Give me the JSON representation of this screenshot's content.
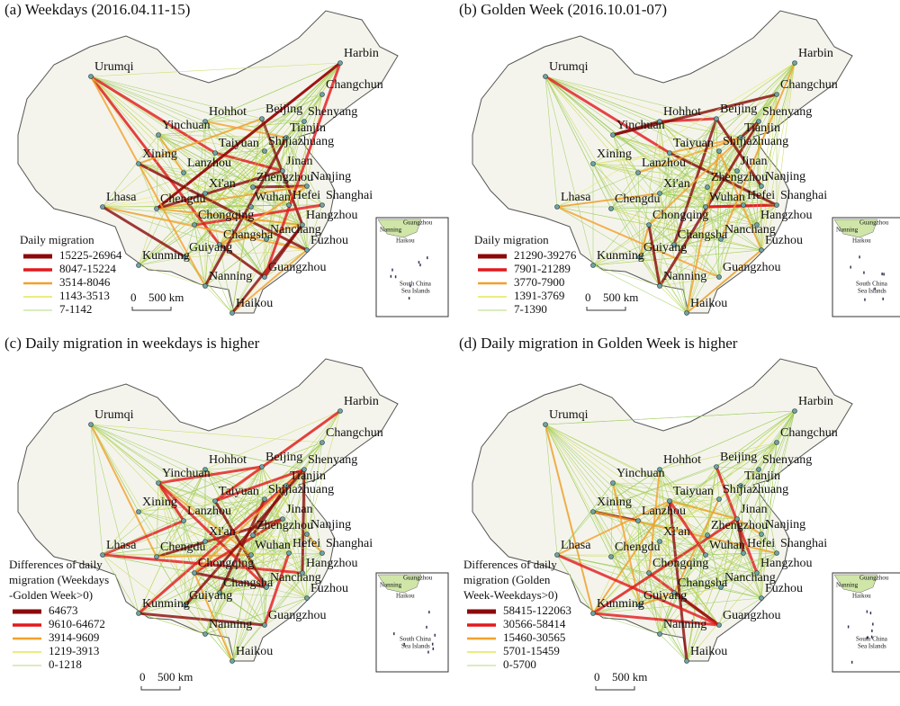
{
  "panels": [
    {
      "title": "(a) Weekdays (2016.04.11-15)",
      "cities": [
        "Urumqi",
        "Harbin",
        "Changchun",
        "Hohhot",
        "Beijing",
        "Shenyang",
        "Yinchuan",
        "Tianjin",
        "Taiyuan",
        "Shijiazhuang",
        "Xining",
        "Lanzhou",
        "Jinan",
        "Nanjing",
        "Zhengzhou",
        "Xi'an",
        "Lhasa",
        "Chengdu",
        "Wuhan",
        "Hefei",
        "Shanghai",
        "Chongqing",
        "Hangzhou",
        "Changsha",
        "Nanchang",
        "Fuzhou",
        "Guiyang",
        "Kunming",
        "Guangzhou",
        "Nanning",
        "Haikou"
      ],
      "legend": {
        "title": [
          "Daily migration"
        ],
        "items": [
          {
            "label": "15225-26964",
            "color": "#8b0a0a"
          },
          {
            "label": "8047-15224",
            "color": "#e3191c"
          },
          {
            "label": "3514-8046",
            "color": "#f5a02a"
          },
          {
            "label": "1143-3513",
            "color": "#e6e65a"
          },
          {
            "label": "7-1142",
            "color": "#9ccc5a"
          }
        ]
      },
      "scale": [
        "0",
        "500 km"
      ],
      "inset": [
        "Guangzhou",
        "Nanning",
        "Haikou",
        "South China",
        "Sea Islands"
      ]
    },
    {
      "title": "(b) Golden Week (2016.10.01-07)",
      "cities": [
        "Urumqi",
        "Harbin",
        "Changchun",
        "Hohhot",
        "Beijing",
        "Shenyang",
        "Yinchuan",
        "Tianjin",
        "Taiyuan",
        "Shijiazhuang",
        "Xining",
        "Lanzhou",
        "Jinan",
        "Nanjing",
        "Zhengzhou",
        "Xi'an",
        "Lhasa",
        "Chengdu",
        "Wuhan",
        "Hefei",
        "Shanghai",
        "Chongqing",
        "Hangzhou",
        "Changsha",
        "Nanchang",
        "Fuzhou",
        "Guiyang",
        "Kunming",
        "Guangzhou",
        "Nanning",
        "Haikou"
      ],
      "legend": {
        "title": [
          "Daily migration"
        ],
        "items": [
          {
            "label": "21290-39276",
            "color": "#8b0a0a"
          },
          {
            "label": "7901-21289",
            "color": "#e3191c"
          },
          {
            "label": "3770-7900",
            "color": "#f5a02a"
          },
          {
            "label": "1391-3769",
            "color": "#e6e65a"
          },
          {
            "label": "7-1390",
            "color": "#9ccc5a"
          }
        ]
      },
      "scale": [
        "0",
        "500 km"
      ],
      "inset": [
        "Guangzhou",
        "Nanning",
        "Haikou",
        "South China",
        "Sea Islands"
      ]
    },
    {
      "title": "(c) Daily migration in weekdays is higher",
      "cities": [
        "Urumqi",
        "Harbin",
        "Changchun",
        "Hohhot",
        "Beijing",
        "Shenyang",
        "Yinchuan",
        "Tianjin",
        "Taiyuan",
        "Shijiazhuang",
        "Xining",
        "Lanzhou",
        "Jinan",
        "Nanjing",
        "Zhengzhou",
        "Xi'an",
        "Lhasa",
        "Chengdu",
        "Wuhan",
        "Hefei",
        "Shanghai",
        "Chongqing",
        "Hangzhou",
        "Changsha",
        "Nanchang",
        "Fuzhou",
        "Guiyang",
        "Kunming",
        "Guangzhou",
        "Nanning",
        "Haikou"
      ],
      "legend": {
        "title": [
          "Differences of daily",
          "migration (Weekdays",
          "-Golden Week>0)"
        ],
        "items": [
          {
            "label": "64673",
            "color": "#8b0a0a"
          },
          {
            "label": "9610-64672",
            "color": "#e3191c"
          },
          {
            "label": "3914-9609",
            "color": "#f5a02a"
          },
          {
            "label": "1219-3913",
            "color": "#e6e65a"
          },
          {
            "label": "0-1218",
            "color": "#9ccc5a"
          }
        ]
      },
      "scale": [
        "0",
        "500 km"
      ],
      "inset": [
        "Guangzhou",
        "Nanning",
        "Haikou",
        "South China",
        "Sea Islands"
      ]
    },
    {
      "title": "(d) Daily migration in Golden Week is higher",
      "cities": [
        "Urumqi",
        "Harbin",
        "Changchun",
        "Hohhot",
        "Beijing",
        "Shenyang",
        "Yinchuan",
        "Tianjin",
        "Taiyuan",
        "Shijiazhuang",
        "Xining",
        "Lanzhou",
        "Jinan",
        "Nanjing",
        "Zhengzhou",
        "Xi'an",
        "Lhasa",
        "Chengdu",
        "Wuhan",
        "Hefei",
        "Shanghai",
        "Chongqing",
        "Hangzhou",
        "Changsha",
        "Nanchang",
        "Fuzhou",
        "Guiyang",
        "Kunming",
        "Guangzhou",
        "Nanning",
        "Haikou"
      ],
      "legend": {
        "title": [
          "Differences of daily",
          "migration (Golden",
          "Week-Weekdays>0)"
        ],
        "items": [
          {
            "label": "58415-122063",
            "color": "#8b0a0a"
          },
          {
            "label": "30566-58414",
            "color": "#e3191c"
          },
          {
            "label": "15460-30565",
            "color": "#f5a02a"
          },
          {
            "label": "5701-15459",
            "color": "#e6e65a"
          },
          {
            "label": "0-5700",
            "color": "#9ccc5a"
          }
        ]
      },
      "scale": [
        "0",
        "500 km"
      ],
      "inset": [
        "Guangzhou",
        "Nanning",
        "Haikou",
        "South China",
        "Sea Islands"
      ]
    }
  ]
}
